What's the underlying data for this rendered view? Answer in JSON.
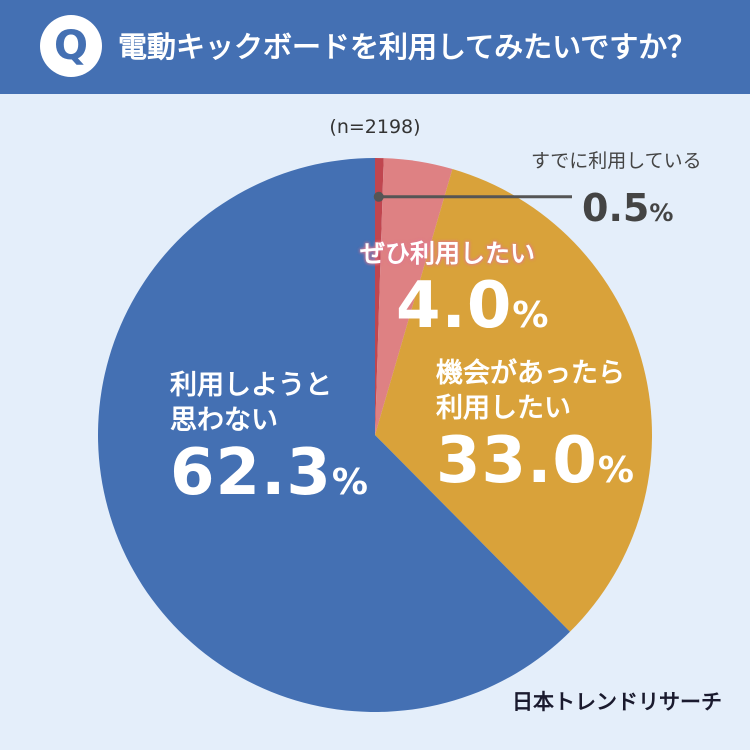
{
  "header": {
    "badge": "Q",
    "question": "電動キックボードを利用してみたいですか？"
  },
  "sample": "(n=2198)",
  "source": "日本トレンドリサーチ",
  "colors": {
    "header_bg": "#4470b3",
    "background": "#e4eefa",
    "using": "#c0464f",
    "want": "#de8183",
    "chance": "#d9a23a",
    "no": "#4470b3"
  },
  "chart_data": {
    "type": "pie",
    "title": "電動キックボードを利用してみたいですか？",
    "n": 2198,
    "slices": [
      {
        "label": "すでに利用している",
        "value": 0.5,
        "color": "#c0464f"
      },
      {
        "label": "ぜひ利用したい",
        "value": 4.0,
        "color": "#de8183"
      },
      {
        "label": "機会があったら利用したい",
        "value": 33.0,
        "color": "#d9a23a"
      },
      {
        "label": "利用しようと思わない",
        "value": 62.3,
        "color": "#4470b3"
      }
    ]
  },
  "labels": {
    "using": {
      "name": "すでに利用している",
      "value": "0.5"
    },
    "want": {
      "name": "ぜひ利用したい",
      "value": "4.0"
    },
    "chance": {
      "line1": "機会があったら",
      "line2": "利用したい",
      "value": "33.0"
    },
    "no": {
      "line1": "利用しようと",
      "line2": "思わない",
      "value": "62.3"
    },
    "pct": "%"
  }
}
